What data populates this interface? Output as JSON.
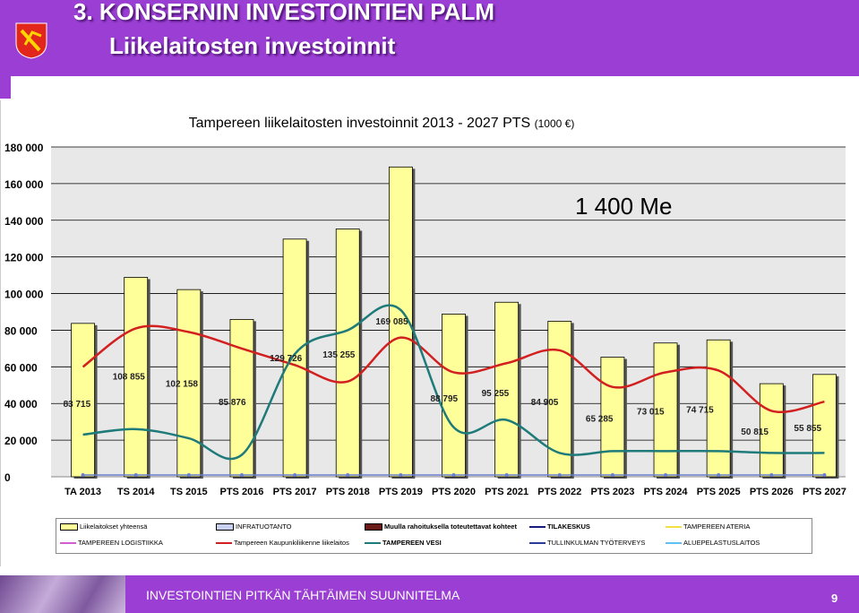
{
  "header": {
    "title_line1": "3. KONSERNIN INVESTOINTIEN PALM",
    "title_line2": "Liikelaitosten investoinnit",
    "logo_icon": "tampere-coat-of-arms-icon",
    "color": "#9b3fd4"
  },
  "footer": {
    "text": "INVESTOINTIEN PITKÄN TÄHTÄIMEN SUUNNITELMA",
    "page_number": "9"
  },
  "chart_data": {
    "type": "bar",
    "title": "Tampereen liikelaitosten investoinnit 2013 - 2027 PTS",
    "title_unit": "(1000 €)",
    "annotation": "1 400 Me",
    "ylim": [
      0,
      180000
    ],
    "yticks": [
      "0",
      "20 000",
      "40 000",
      "60 000",
      "80 000",
      "100 000",
      "120 000",
      "140 000",
      "160 000",
      "180 000"
    ],
    "grid": true,
    "categories": [
      "TA 2013",
      "TS 2014",
      "TS 2015",
      "PTS 2016",
      "PTS 2017",
      "PTS 2018",
      "PTS 2019",
      "PTS 2020",
      "PTS 2021",
      "PTS 2022",
      "PTS 2023",
      "PTS 2024",
      "PTS 2025",
      "PTS 2026",
      "PTS 2027"
    ],
    "series": [
      {
        "name": "Liikelaitokset yhteensä",
        "kind": "bar",
        "color": "#ffff99",
        "values": [
          83715,
          108855,
          102158,
          85876,
          129726,
          135255,
          169085,
          88795,
          95255,
          84905,
          65285,
          73015,
          74715,
          50815,
          55855
        ],
        "labels": [
          "83 715",
          "108 855",
          "102 158",
          "85 876",
          "129 726",
          "135 255",
          "169 085",
          "88 795",
          "95 255",
          "84 905",
          "65 285",
          "73 015",
          "74 715",
          "50 815",
          "55 855"
        ]
      },
      {
        "name": "Tampereen Kaupunkiliikenne liikelaitos",
        "kind": "line",
        "color": "#d21f1f",
        "values": [
          60000,
          81000,
          79000,
          70000,
          61000,
          52000,
          76000,
          57000,
          62000,
          69000,
          49000,
          57000,
          58000,
          36000,
          41000
        ]
      },
      {
        "name": "TAMPEREEN VESI",
        "kind": "line",
        "color": "#1f7a7a",
        "values": [
          23000,
          26000,
          21000,
          12000,
          67000,
          80000,
          91000,
          27000,
          31000,
          13000,
          14000,
          14000,
          14000,
          13000,
          13000
        ]
      },
      {
        "name": "INFRATUOTANTO",
        "kind": "line",
        "color": "#6a7fd0",
        "values": [
          1000,
          1000,
          1000,
          1000,
          1000,
          1000,
          1000,
          1000,
          1000,
          1000,
          1000,
          1000,
          1000,
          1000,
          1000
        ]
      }
    ],
    "legend": [
      {
        "label": "Liikelaitokset yhteensä",
        "style": "box",
        "color": "#ffff99"
      },
      {
        "label": "INFRATUOTANTO",
        "style": "box",
        "color": "#c8d0f0"
      },
      {
        "label": "Muulla rahoituksella toteutettavat kohteet",
        "style": "box",
        "color": "#6b1a1a"
      },
      {
        "label": "TILAKESKUS",
        "style": "line",
        "color": "#1a1a80"
      },
      {
        "label": "TAMPEREEN ATERIA",
        "style": "line",
        "color": "#f0e040"
      },
      {
        "label": "TAMPEREEN LOGISTIIKKA",
        "style": "line",
        "color": "#d060d0"
      },
      {
        "label": "Tampereen Kaupunkiliikenne liikelaitos",
        "style": "line",
        "color": "#d21f1f"
      },
      {
        "label": "TAMPEREEN VESI",
        "style": "line",
        "color": "#1f7a7a"
      },
      {
        "label": "TULLINKULMAN TYÖTERVEYS",
        "style": "line",
        "color": "#2a3a9a"
      },
      {
        "label": "ALUEPELASTUSLAITOS",
        "style": "line",
        "color": "#60c0f0"
      }
    ]
  }
}
